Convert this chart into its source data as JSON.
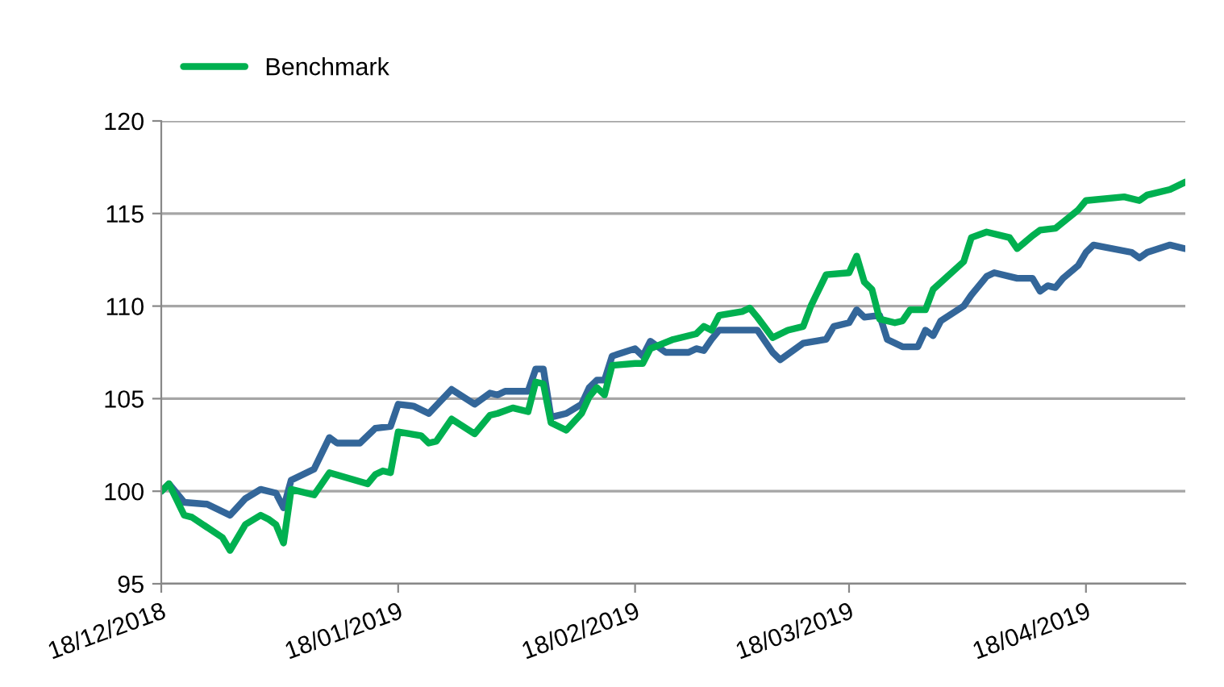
{
  "chart_data": {
    "type": "line",
    "legend": "top left",
    "grid": "y",
    "ylim": [
      95,
      120
    ],
    "yticks": [
      95,
      100,
      105,
      110,
      115,
      120
    ],
    "xlim": [
      "2018-12-18",
      "2019-05-01"
    ],
    "xticks": [
      {
        "value": "2018-12-18",
        "label": "18/12/2018"
      },
      {
        "value": "2019-01-18",
        "label": "18/01/2019"
      },
      {
        "value": "2019-02-18",
        "label": "18/02/2019"
      },
      {
        "value": "2019-03-18",
        "label": "18/03/2019"
      },
      {
        "value": "2019-04-18",
        "label": "18/04/2019"
      }
    ],
    "series": [
      {
        "color": "#336699",
        "x": [
          "2018-12-18",
          "2018-12-19",
          "2018-12-21",
          "2018-12-24",
          "2018-12-27",
          "2018-12-29",
          "2018-12-31",
          "2019-01-02",
          "2019-01-03",
          "2019-01-04",
          "2019-01-07",
          "2019-01-09",
          "2019-01-10",
          "2019-01-13",
          "2019-01-15",
          "2019-01-17",
          "2019-01-18",
          "2019-01-20",
          "2019-01-22",
          "2019-01-25",
          "2019-01-28",
          "2019-01-30",
          "2019-01-31",
          "2019-02-01",
          "2019-02-04",
          "2019-02-05",
          "2019-02-06",
          "2019-02-07",
          "2019-02-09",
          "2019-02-11",
          "2019-02-12",
          "2019-02-13",
          "2019-02-14",
          "2019-02-15",
          "2019-02-18",
          "2019-02-19",
          "2019-02-20",
          "2019-02-22",
          "2019-02-25",
          "2019-02-26",
          "2019-02-27",
          "2019-02-28",
          "2019-03-01",
          "2019-03-06",
          "2019-03-08",
          "2019-03-09",
          "2019-03-12",
          "2019-03-15",
          "2019-03-16",
          "2019-03-18",
          "2019-03-19",
          "2019-03-20",
          "2019-03-22",
          "2019-03-23",
          "2019-03-25",
          "2019-03-27",
          "2019-03-28",
          "2019-03-29",
          "2019-03-30",
          "2019-04-02",
          "2019-04-03",
          "2019-04-05",
          "2019-04-06",
          "2019-04-09",
          "2019-04-11",
          "2019-04-12",
          "2019-04-13",
          "2019-04-14",
          "2019-04-15",
          "2019-04-17",
          "2019-04-18",
          "2019-04-19",
          "2019-04-24",
          "2019-04-25",
          "2019-04-26",
          "2019-04-29",
          "2019-05-01"
        ],
        "values": [
          100,
          100.4,
          99.4,
          99.3,
          98.7,
          99.6,
          100.1,
          99.9,
          99.1,
          100.6,
          101.2,
          102.9,
          102.6,
          102.6,
          103.4,
          103.5,
          104.7,
          104.6,
          104.2,
          105.5,
          104.7,
          105.3,
          105.2,
          105.4,
          105.4,
          106.6,
          106.6,
          104.0,
          104.2,
          104.7,
          105.6,
          106.0,
          106.0,
          107.3,
          107.7,
          107.3,
          108.1,
          107.5,
          107.5,
          107.7,
          107.6,
          108.2,
          108.7,
          108.7,
          107.5,
          107.1,
          108.0,
          108.2,
          108.9,
          109.1,
          109.8,
          109.4,
          109.5,
          108.2,
          107.8,
          107.8,
          108.7,
          108.4,
          109.2,
          110.0,
          110.6,
          111.6,
          111.8,
          111.5,
          111.5,
          110.8,
          111.1,
          111.0,
          111.5,
          112.2,
          112.9,
          113.3,
          112.9,
          112.6,
          112.9,
          113.3,
          113.1
        ]
      },
      {
        "name": "Benchmark",
        "color": "#00b050",
        "x": [
          "2018-12-18",
          "2018-12-19",
          "2018-12-21",
          "2018-12-22",
          "2018-12-26",
          "2018-12-27",
          "2018-12-29",
          "2018-12-31",
          "2019-01-01",
          "2019-01-02",
          "2019-01-03",
          "2019-01-04",
          "2019-01-07",
          "2019-01-09",
          "2019-01-14",
          "2019-01-15",
          "2019-01-16",
          "2019-01-17",
          "2019-01-18",
          "2019-01-21",
          "2019-01-22",
          "2019-01-23",
          "2019-01-25",
          "2019-01-28",
          "2019-01-30",
          "2019-01-31",
          "2019-02-02",
          "2019-02-04",
          "2019-02-05",
          "2019-02-06",
          "2019-02-07",
          "2019-02-09",
          "2019-02-11",
          "2019-02-12",
          "2019-02-13",
          "2019-02-14",
          "2019-02-15",
          "2019-02-18",
          "2019-02-19",
          "2019-02-20",
          "2019-02-23",
          "2019-02-26",
          "2019-02-27",
          "2019-02-28",
          "2019-03-01",
          "2019-03-04",
          "2019-03-05",
          "2019-03-06",
          "2019-03-08",
          "2019-03-10",
          "2019-03-12",
          "2019-03-13",
          "2019-03-15",
          "2019-03-18",
          "2019-03-19",
          "2019-03-20",
          "2019-03-21",
          "2019-03-22",
          "2019-03-24",
          "2019-03-25",
          "2019-03-26",
          "2019-03-28",
          "2019-03-29",
          "2019-04-02",
          "2019-04-03",
          "2019-04-05",
          "2019-04-08",
          "2019-04-09",
          "2019-04-11",
          "2019-04-12",
          "2019-04-14",
          "2019-04-17",
          "2019-04-18",
          "2019-04-23",
          "2019-04-25",
          "2019-04-26",
          "2019-04-29",
          "2019-05-01"
        ],
        "values": [
          100,
          100.4,
          98.7,
          98.6,
          97.5,
          96.8,
          98.2,
          98.7,
          98.5,
          98.2,
          97.2,
          100.1,
          99.8,
          101.0,
          100.4,
          100.9,
          101.1,
          101.0,
          103.2,
          103.0,
          102.6,
          102.7,
          103.9,
          103.1,
          104.1,
          104.2,
          104.5,
          104.3,
          105.9,
          105.8,
          103.7,
          103.3,
          104.2,
          105.1,
          105.6,
          105.2,
          106.8,
          106.9,
          106.9,
          107.7,
          108.2,
          108.5,
          108.9,
          108.7,
          109.5,
          109.7,
          109.9,
          109.4,
          108.3,
          108.7,
          108.9,
          110.0,
          111.7,
          111.8,
          112.7,
          111.3,
          110.9,
          109.3,
          109.1,
          109.2,
          109.8,
          109.8,
          110.9,
          112.4,
          113.7,
          114.0,
          113.7,
          113.1,
          113.8,
          114.1,
          114.2,
          115.2,
          115.7,
          115.9,
          115.7,
          116.0,
          116.3,
          116.7
        ]
      }
    ]
  }
}
